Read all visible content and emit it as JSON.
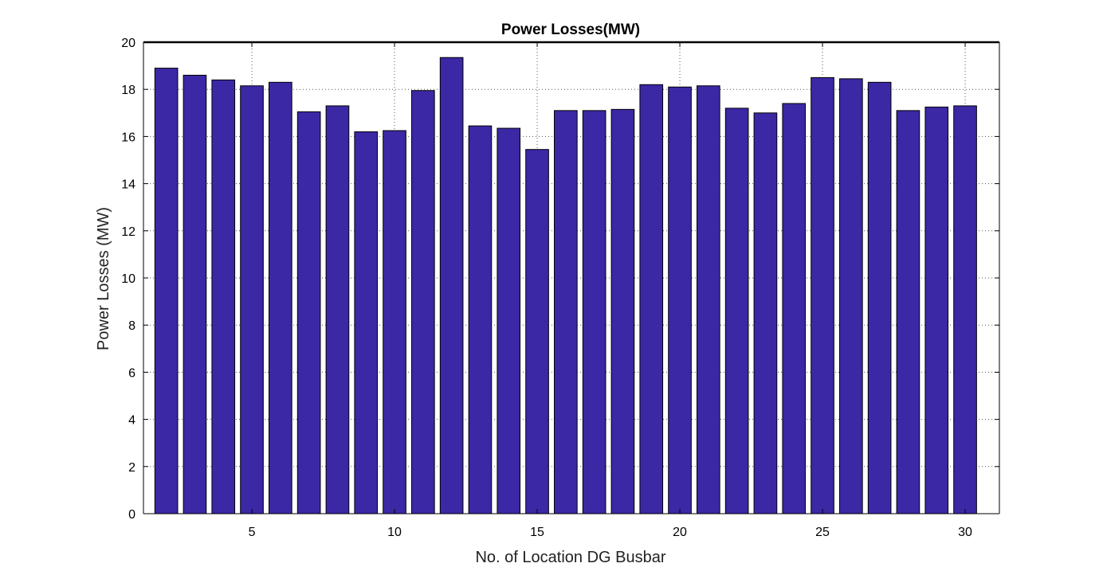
{
  "chart_data": {
    "type": "bar",
    "title": "Power Losses(MW)",
    "xlabel": "No. of Location DG Busbar",
    "ylabel": "Power Losses (MW)",
    "x": [
      2,
      3,
      4,
      5,
      6,
      7,
      8,
      9,
      10,
      11,
      12,
      13,
      14,
      15,
      16,
      17,
      18,
      19,
      20,
      21,
      22,
      23,
      24,
      25,
      26,
      27,
      28,
      29,
      30
    ],
    "values": [
      18.9,
      18.6,
      18.4,
      18.15,
      18.3,
      17.05,
      17.3,
      16.2,
      16.25,
      17.95,
      19.35,
      16.45,
      16.35,
      15.45,
      17.1,
      17.1,
      17.15,
      18.2,
      18.1,
      18.15,
      17.2,
      17.0,
      17.4,
      18.5,
      18.45,
      18.3,
      17.1,
      17.25,
      17.3
    ],
    "xlim": [
      1.2,
      31.2
    ],
    "ylim": [
      0,
      20
    ],
    "xticks": [
      5,
      10,
      15,
      20,
      25,
      30
    ],
    "yticks": [
      0,
      2,
      4,
      6,
      8,
      10,
      12,
      14,
      16,
      18,
      20
    ],
    "grid": true,
    "bar_color": "#3b28a5",
    "edge_color": "#000000"
  }
}
